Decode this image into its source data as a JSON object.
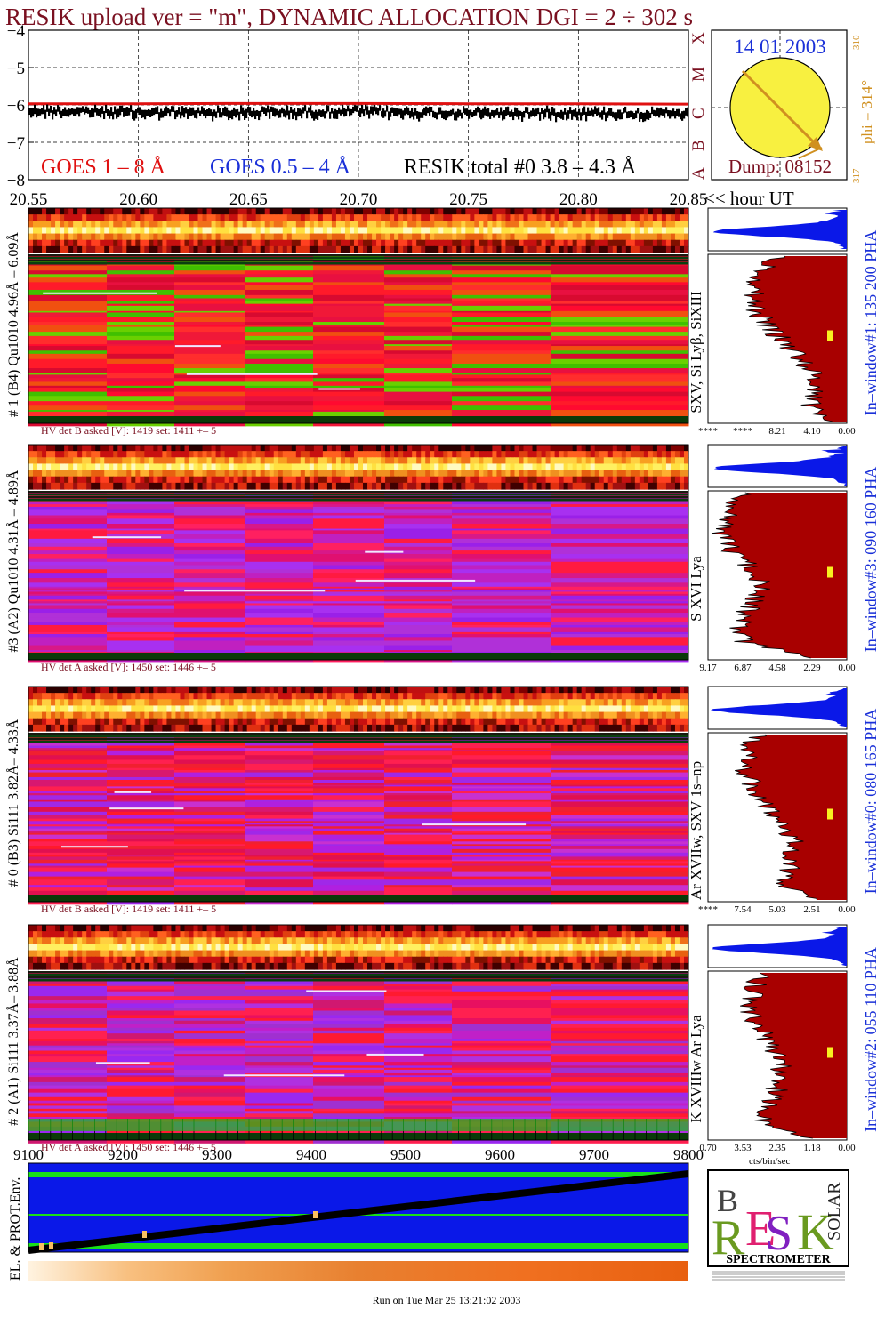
{
  "header": {
    "title": "RESIK upload ver = \"m\", DYNAMIC ALLOCATION  DGI =   2 ÷ 302 s"
  },
  "goes_chart": {
    "legend": [
      "GOES 1 – 8 Å",
      "GOES 0.5 – 4 Å",
      "RESIK total #0  3.8 – 4.3 Å"
    ],
    "class_labels": [
      "X",
      "M",
      "C",
      "B",
      "A"
    ]
  },
  "sun_panel": {
    "date": "14 01 2003",
    "dump": "Dump: 08152",
    "phi": "phi = 314°",
    "phi_top": "310",
    "phi_bottom": "317"
  },
  "time_axis": {
    "ticks": [
      "20.55",
      "20.60",
      "20.65",
      "20.70",
      "20.75",
      "20.80",
      "20.85"
    ],
    "unit": "<< hour UT"
  },
  "channels": [
    {
      "left_label": "# 1 (B4) Qu1010  4.96Å – 6.09Å",
      "line_label": "SXV, Si Lyβ, SiXIII",
      "hv": "HV det B asked [V]:  1419  set:  1411  +–    5",
      "hist_ticks": [
        "****",
        "****",
        "8.21",
        "4.10",
        "0.00"
      ],
      "window": "In–window#1:  135 200 PHA"
    },
    {
      "left_label": "#3 (A2) Qu1010  4.31Å – 4.89Å",
      "line_label": "S XVI Lya",
      "hv": "HV det A asked [V]:  1450  set:  1446  +–    5",
      "hist_ticks": [
        "9.17",
        "6.87",
        "4.58",
        "2.29",
        "0.00"
      ],
      "window": "In–window#3:  090 160 PHA"
    },
    {
      "left_label": "# 0 (B3) Si111  3.82Å– 4.33Å",
      "line_label": "Ar XVIIw, SXV 1s–np",
      "hv": "HV det B asked [V]:  1419  set:  1411  +–    5",
      "hist_ticks": [
        "****",
        "7.54",
        "5.03",
        "2.51",
        "0.00"
      ],
      "window": "In–window#0:  080 165 PHA"
    },
    {
      "left_label": "# 2 (A1) Si111  3.37Å– 3.88Å",
      "line_label": "K XVIIIw  Ar Lya",
      "hv": "HV det A asked [V]:  1450  set:  1446  +–    5",
      "hist_ticks": [
        "0.70",
        "3.53",
        "2.35",
        "1.18",
        "0.00"
      ],
      "window": "In–window#2:  055 110 PHA"
    }
  ],
  "hist_unit": "cts/bin/sec",
  "dump_axis": {
    "ticks": [
      "9100",
      "9200",
      "9300",
      "9400",
      "9500",
      "9600",
      "9700",
      "9800"
    ]
  },
  "env_label": "EL. & PROT.Env.",
  "logo": {
    "word": "SPECTROMETER",
    "bottom_text": "RESIK SPECTROMETER"
  },
  "footer": "Run on Tue Mar 25 13:21:02 2003",
  "colors": {
    "title": "#7a1020",
    "goes_long": "#e01010",
    "goes_short": "#1a30d8",
    "resik": "#000000",
    "hist_red": "#a80000",
    "hist_blue": "#0a18e8",
    "env_blue": "#0a18e8",
    "env_green": "#19e019",
    "sun_yellow": "#f8f040",
    "phi_orange": "#d09020"
  },
  "chart_data": {
    "type": "line",
    "title": "RESIK upload ver = \"m\", DYNAMIC ALLOCATION  DGI =   2 ÷ 302 s",
    "xlabel": "hour UT",
    "ylabel": "",
    "xlim": [
      20.55,
      20.85
    ],
    "ylim": [
      -8,
      -4
    ],
    "x_ticks": [
      20.55,
      20.6,
      20.65,
      20.7,
      20.75,
      20.8,
      20.85
    ],
    "y_ticks": [
      -4,
      -5,
      -6,
      -7,
      -8
    ],
    "grid": true,
    "series": [
      {
        "name": "GOES 1 – 8 Å",
        "x": [
          20.55,
          20.6,
          20.65,
          20.7,
          20.75,
          20.8,
          20.85
        ],
        "y": [
          -5.97,
          -5.97,
          -5.96,
          -5.96,
          -5.97,
          -5.97,
          -5.98
        ]
      },
      {
        "name": "GOES 0.5 – 4 Å",
        "x": [],
        "y": []
      },
      {
        "name": "RESIK total #0  3.8 – 4.3 Å",
        "x": [
          20.55,
          20.6,
          20.65,
          20.7,
          20.75,
          20.8,
          20.85
        ],
        "y": [
          -6.15,
          -6.2,
          -6.2,
          -6.18,
          -6.22,
          -6.2,
          -6.25
        ]
      }
    ]
  }
}
